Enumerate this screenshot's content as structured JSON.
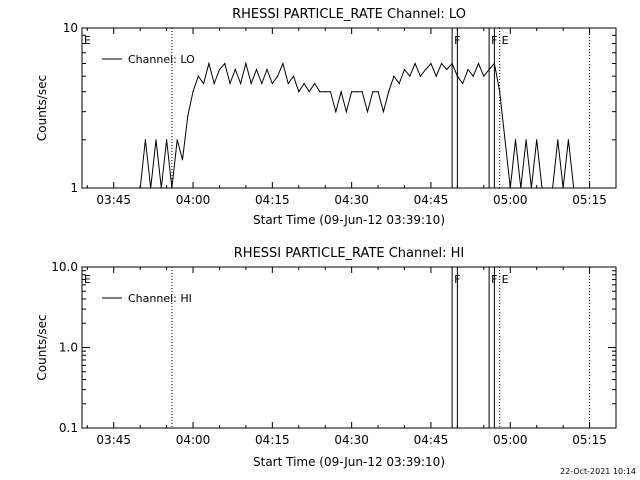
{
  "chart_data": [
    {
      "type": "line",
      "title": "RHESSI PARTICLE_RATE Channel: LO",
      "xlabel": "Start Time (09-Jun-12 03:39:10)",
      "ylabel": "Counts/sec",
      "y_scale": "log",
      "ylim": [
        1,
        10
      ],
      "y_ticks": [
        "10",
        "1"
      ],
      "xlim_minutes": [
        "03:39",
        "05:20"
      ],
      "x_ticks": [
        "03:45",
        "04:00",
        "04:15",
        "04:30",
        "04:45",
        "05:00",
        "05:15"
      ],
      "grid": false,
      "legend": "top-left",
      "series": [
        {
          "name": "Channel: LO",
          "x": [
            "03:50",
            "03:51",
            "03:52",
            "03:53",
            "03:54",
            "03:55",
            "03:56",
            "03:57",
            "03:58",
            "03:59",
            "04:00",
            "04:01",
            "04:02",
            "04:03",
            "04:04",
            "04:05",
            "04:06",
            "04:07",
            "04:08",
            "04:09",
            "04:10",
            "04:11",
            "04:12",
            "04:13",
            "04:14",
            "04:15",
            "04:16",
            "04:17",
            "04:18",
            "04:19",
            "04:20",
            "04:21",
            "04:22",
            "04:23",
            "04:24",
            "04:25",
            "04:26",
            "04:27",
            "04:28",
            "04:29",
            "04:30",
            "04:31",
            "04:32",
            "04:33",
            "04:34",
            "04:35",
            "04:36",
            "04:37",
            "04:38",
            "04:39",
            "04:40",
            "04:41",
            "04:42",
            "04:43",
            "04:44",
            "04:45",
            "04:46",
            "04:47",
            "04:48",
            "04:49",
            "04:50",
            "04:51",
            "04:52",
            "04:53",
            "04:54",
            "04:55",
            "04:56",
            "04:57",
            "04:58",
            "04:59",
            "05:00",
            "05:01",
            "05:02",
            "05:03",
            "05:04",
            "05:05",
            "05:06",
            "05:07",
            "05:08",
            "05:09",
            "05:10",
            "05:11",
            "05:12",
            "05:13",
            "05:14",
            "05:15"
          ],
          "values": [
            1,
            2,
            1,
            2,
            1,
            2,
            1,
            2,
            1.5,
            2.8,
            4,
            5,
            4.5,
            6,
            4.5,
            5.5,
            6,
            4.5,
            5.5,
            4.5,
            6,
            4.5,
            5.5,
            4.5,
            5.5,
            4.5,
            5,
            6,
            4.5,
            5,
            4,
            4.5,
            4,
            4.5,
            4,
            4,
            4,
            3,
            4,
            3,
            4,
            4,
            4,
            3,
            4,
            4,
            3,
            4,
            5,
            4.5,
            5.5,
            5,
            6,
            5,
            5.5,
            6,
            5,
            6,
            5.5,
            6,
            5,
            4.5,
            5.5,
            5,
            6,
            5,
            5.5,
            6,
            4,
            2,
            1,
            2,
            1,
            2,
            1,
            2,
            1,
            1,
            1,
            2,
            1,
            2,
            1,
            1,
            1,
            1
          ]
        }
      ],
      "annotations": [
        {
          "label": "E",
          "x": "03:39"
        },
        {
          "label": "F",
          "x": "04:49"
        },
        {
          "label": "F",
          "x": "04:56"
        },
        {
          "label": "E",
          "x": "04:58"
        }
      ],
      "dotted_lines_x": [
        "03:56",
        "04:58",
        "05:15"
      ],
      "solid_lines_x": [
        "04:49",
        "04:50",
        "04:56",
        "04:57"
      ]
    },
    {
      "type": "line",
      "title": "RHESSI PARTICLE_RATE Channel: HI",
      "xlabel": "Start Time (09-Jun-12 03:39:10)",
      "ylabel": "Counts/sec",
      "y_scale": "log",
      "ylim": [
        0.1,
        10
      ],
      "y_ticks": [
        "10.0",
        "1.0",
        "0.1"
      ],
      "xlim_minutes": [
        "03:39",
        "05:20"
      ],
      "x_ticks": [
        "03:45",
        "04:00",
        "04:15",
        "04:30",
        "04:45",
        "05:00",
        "05:15"
      ],
      "grid": false,
      "legend": "top-left",
      "series": [
        {
          "name": "Channel: HI",
          "x": [],
          "values": []
        }
      ],
      "annotations": [
        {
          "label": "E",
          "x": "03:39"
        },
        {
          "label": "F",
          "x": "04:49"
        },
        {
          "label": "F",
          "x": "04:56"
        },
        {
          "label": "E",
          "x": "04:58"
        }
      ],
      "dotted_lines_x": [
        "03:56",
        "04:58",
        "05:15"
      ],
      "solid_lines_x": [
        "04:49",
        "04:50",
        "04:56",
        "04:57"
      ]
    }
  ],
  "footer": {
    "timestamp": "22-Oct-2021 10:14"
  }
}
